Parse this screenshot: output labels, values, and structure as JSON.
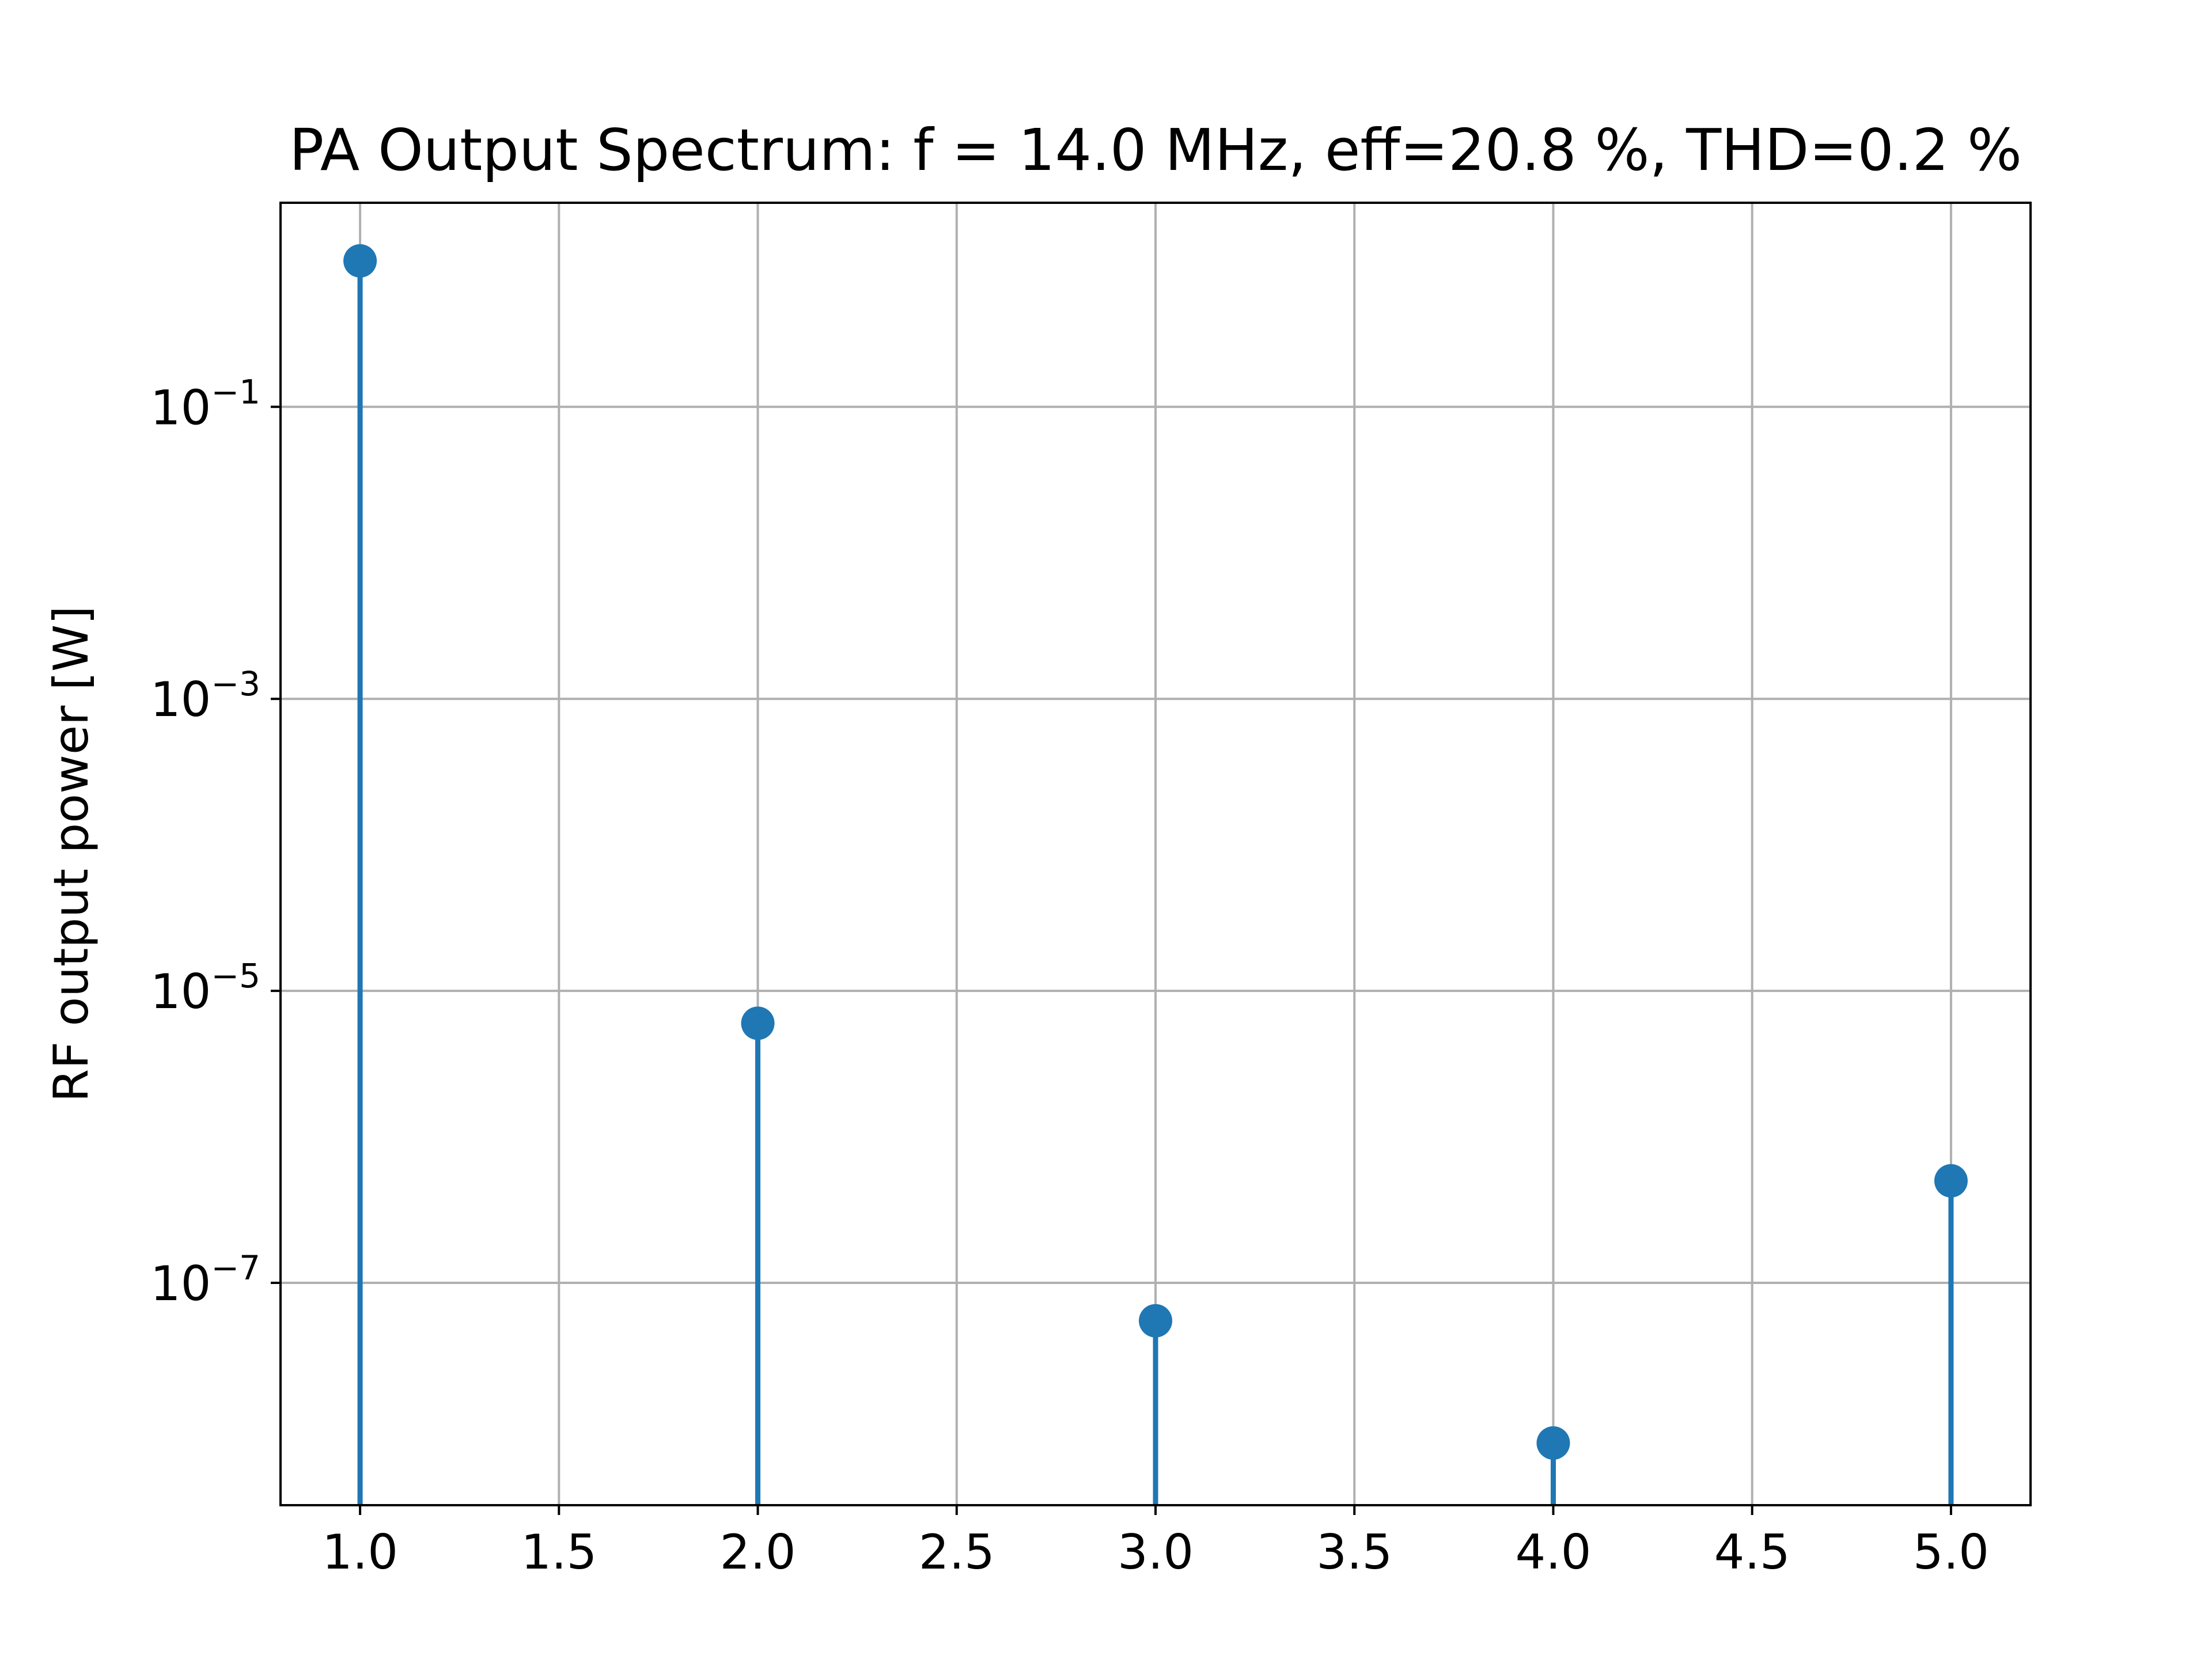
{
  "chart_data": {
    "type": "stem",
    "title": "PA Output Spectrum: f = 14.0 MHz, eff=20.8 %, THD=0.2 %",
    "xlabel": "",
    "ylabel": "RF output power [W]",
    "yscale": "log",
    "x": [
      1.0,
      2.0,
      3.0,
      4.0,
      5.0
    ],
    "values": [
      1.0,
      6e-06,
      5.5e-08,
      8e-09,
      5e-07
    ],
    "xlim": [
      0.8,
      5.2
    ],
    "ylim": [
      3e-09,
      2.5
    ],
    "xticks": [
      1.0,
      1.5,
      2.0,
      2.5,
      3.0,
      3.5,
      4.0,
      4.5,
      5.0
    ],
    "xtick_labels": [
      "1.0",
      "1.5",
      "2.0",
      "2.5",
      "3.0",
      "3.5",
      "4.0",
      "4.5",
      "5.0"
    ],
    "yticks": [
      0.1,
      0.001,
      1e-05,
      1e-07
    ],
    "ytick_labels": [
      {
        "base": "10",
        "exp": "−1"
      },
      {
        "base": "10",
        "exp": "−3"
      },
      {
        "base": "10",
        "exp": "−5"
      },
      {
        "base": "10",
        "exp": "−7"
      }
    ],
    "grid": true,
    "colors": {
      "series": "#1f77b4",
      "grid": "#b0b0b0",
      "axes": "#000000"
    }
  }
}
